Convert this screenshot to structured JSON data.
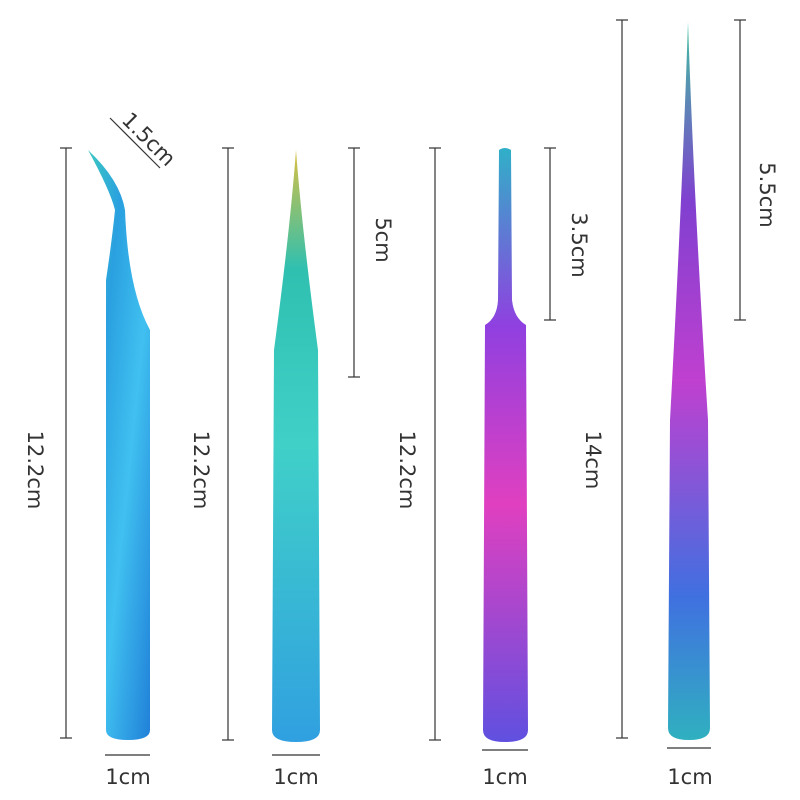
{
  "tweezers": [
    {
      "length": "12.2cm",
      "tip": "1.5cm",
      "width": "1cm"
    },
    {
      "length": "12.2cm",
      "tip": "5cm",
      "width": "1cm"
    },
    {
      "length": "12.2cm",
      "tip": "3.5cm",
      "width": "1cm"
    },
    {
      "length": "14cm",
      "tip": "5.5cm",
      "width": "1cm"
    }
  ]
}
